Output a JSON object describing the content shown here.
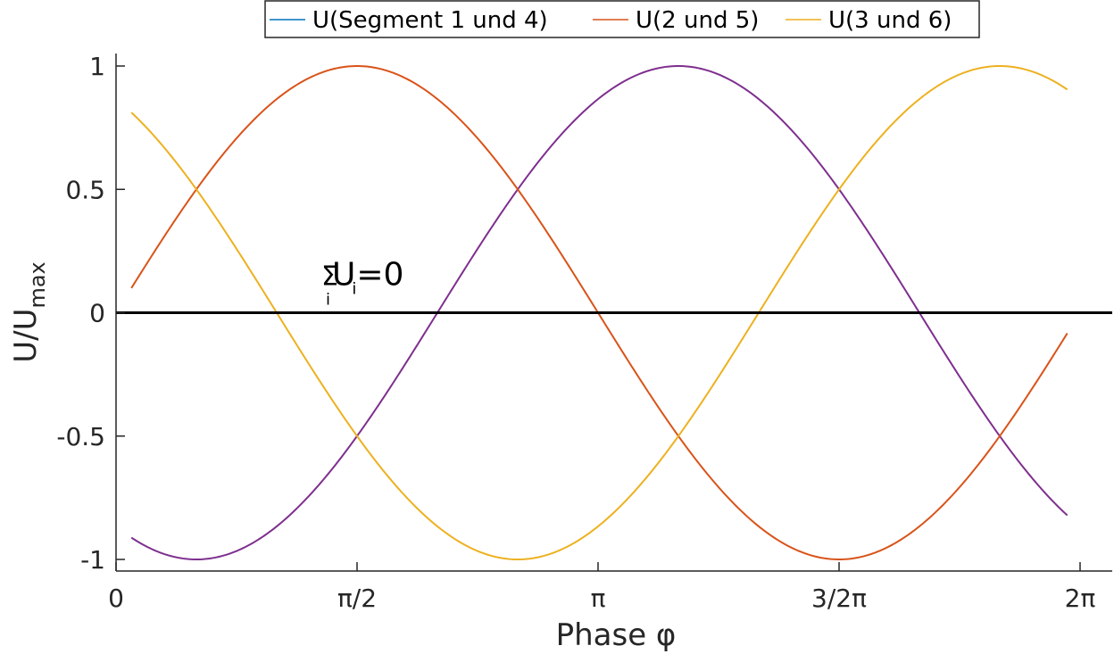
{
  "chart_data": {
    "type": "line",
    "xlabel": "Phase φ",
    "ylabel_main": "U/U",
    "ylabel_sub": "max",
    "xlim": [
      0,
      6.2832
    ],
    "ylim": [
      -1.05,
      1.05
    ],
    "x_ticks": [
      {
        "value": 0,
        "label": "0"
      },
      {
        "value": 1.5708,
        "label": "π/2"
      },
      {
        "value": 3.1416,
        "label": "π"
      },
      {
        "value": 4.7124,
        "label": "3/2π"
      },
      {
        "value": 6.2832,
        "label": "2π"
      }
    ],
    "y_ticks": [
      {
        "value": -1,
        "label": "-1"
      },
      {
        "value": -0.5,
        "label": "-0.5"
      },
      {
        "value": 0,
        "label": "0"
      },
      {
        "value": 0.5,
        "label": "0.5"
      },
      {
        "value": 1,
        "label": "1"
      }
    ],
    "x_range": [
      0.1,
      6.2
    ],
    "series": [
      {
        "name": "U(Segment 1 und 4)",
        "color": "#0072BD",
        "draw_color": "#7E2F8E",
        "phase_shift": -2.0944
      },
      {
        "name": "U(2 und 5)",
        "color": "#D95319",
        "draw_color": "#D95319",
        "phase_shift": 0
      },
      {
        "name": "U(3 und 6)",
        "color": "#EDB120",
        "draw_color": "#EDB120",
        "phase_shift": 2.0944
      }
    ],
    "sum_line": {
      "y": 0,
      "color": "#000000"
    },
    "annotation": {
      "sigma": "Σ",
      "sub_i1": "i",
      "u": "U",
      "sub_i2": "i",
      "eq": "=0",
      "x": 1.35,
      "y": 0.13
    },
    "legend_position": "top"
  }
}
